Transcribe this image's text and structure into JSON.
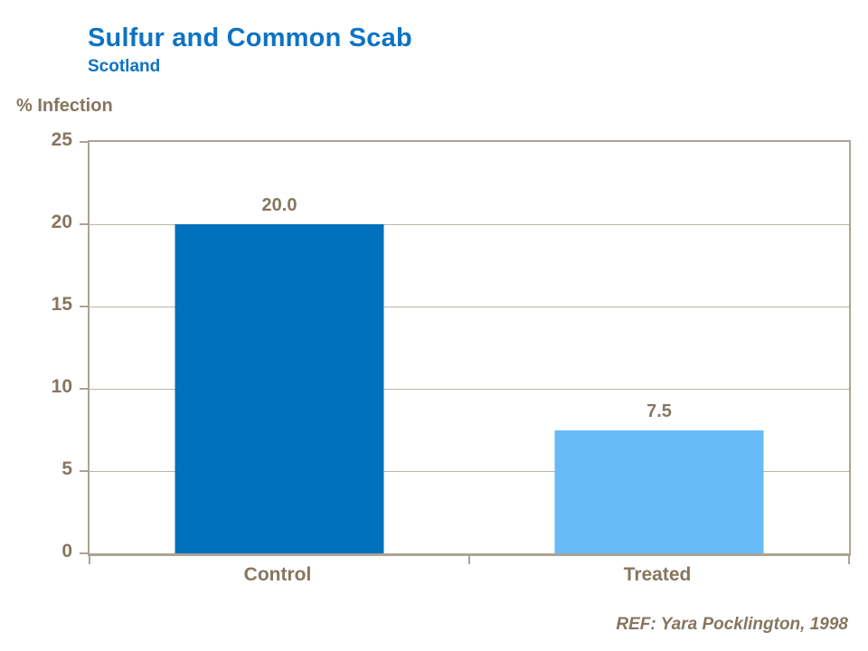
{
  "header": {
    "title": "Sulfur and Common Scab",
    "subtitle": "Scotland"
  },
  "chart_data": {
    "type": "bar",
    "title": "Sulfur and Common Scab",
    "subtitle": "Scotland",
    "xlabel": "",
    "ylabel": "% Infection",
    "categories": [
      "Control",
      "Treated"
    ],
    "values": [
      20.0,
      7.5
    ],
    "value_labels": [
      "20.0",
      "7.5"
    ],
    "bar_colors": [
      "#0071BC",
      "#66BBF7"
    ],
    "ylim": [
      0,
      25
    ],
    "yticks": [
      0,
      5,
      10,
      15,
      20,
      25
    ],
    "grid": "horizontal gridlines at each y tick",
    "legend": "none",
    "category_centers_pct": [
      25,
      75
    ]
  },
  "footer": {
    "reference": "REF: Yara Pocklington, 1998"
  },
  "colors": {
    "title_blue": "#0D73C4",
    "text_brown": "#86765F",
    "axis_border": "#ACA396",
    "gridline": "#BDB5A8",
    "bar_control": "#0071BC",
    "bar_treated": "#66BBF7"
  }
}
